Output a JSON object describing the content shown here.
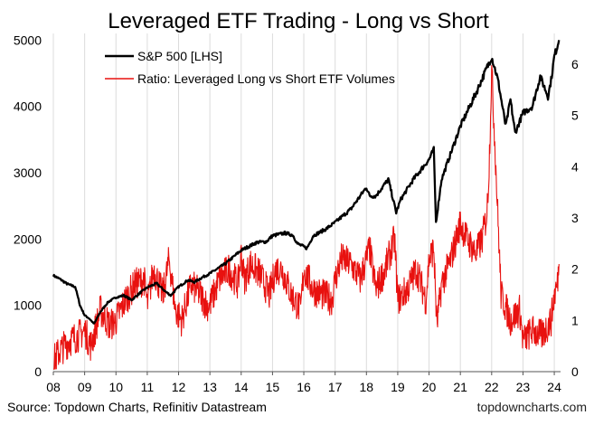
{
  "chart_data": {
    "type": "line",
    "title": "Leveraged ETF Trading - Long vs Short",
    "x_ticks": [
      "08",
      "09",
      "10",
      "11",
      "12",
      "13",
      "14",
      "15",
      "16",
      "17",
      "18",
      "19",
      "20",
      "21",
      "22",
      "23",
      "24"
    ],
    "xlim": [
      2008,
      2024.2
    ],
    "y_left": {
      "label": "",
      "range": [
        0,
        5100
      ],
      "ticks": [
        "0",
        "1000",
        "2000",
        "3000",
        "4000",
        "5000"
      ]
    },
    "y_right": {
      "label": "",
      "range": [
        0,
        6.6
      ],
      "ticks": [
        "0",
        "1",
        "2",
        "3",
        "4",
        "5",
        "6"
      ]
    },
    "grid": "vertical",
    "legend_position": "top-left",
    "colors": {
      "sp500": "#000000",
      "ratio": "#e8110f"
    },
    "series": [
      {
        "name": "S&P 500 [LHS]",
        "axis": "left",
        "x": [
          2008.0,
          2008.2,
          2008.45,
          2008.7,
          2008.85,
          2009.0,
          2009.15,
          2009.3,
          2009.5,
          2009.75,
          2010.0,
          2010.25,
          2010.5,
          2010.75,
          2011.0,
          2011.3,
          2011.6,
          2011.75,
          2012.0,
          2012.3,
          2012.5,
          2012.75,
          2013.0,
          2013.5,
          2014.0,
          2014.5,
          2014.8,
          2015.0,
          2015.4,
          2015.65,
          2015.8,
          2016.1,
          2016.3,
          2016.7,
          2017.0,
          2017.5,
          2018.0,
          2018.1,
          2018.3,
          2018.7,
          2018.95,
          2019.1,
          2019.5,
          2020.0,
          2020.15,
          2020.22,
          2020.4,
          2020.7,
          2021.0,
          2021.5,
          2022.0,
          2022.2,
          2022.45,
          2022.6,
          2022.75,
          2023.0,
          2023.3,
          2023.55,
          2023.8,
          2023.9,
          2024.0,
          2024.15
        ],
        "values": [
          1450,
          1400,
          1320,
          1280,
          1000,
          850,
          800,
          720,
          900,
          1050,
          1120,
          1150,
          1080,
          1180,
          1270,
          1330,
          1200,
          1150,
          1280,
          1380,
          1350,
          1420,
          1480,
          1630,
          1830,
          1950,
          1960,
          2050,
          2090,
          2060,
          1930,
          1860,
          2050,
          2150,
          2250,
          2450,
          2780,
          2650,
          2650,
          2900,
          2400,
          2600,
          2900,
          3200,
          3350,
          2250,
          2900,
          3300,
          3700,
          4200,
          4750,
          4400,
          3700,
          4100,
          3600,
          3900,
          4000,
          4450,
          4150,
          4400,
          4750,
          5000
        ]
      },
      {
        "name": "Ratio: Leveraged Long vs Short ETF Volumes",
        "axis": "right",
        "x": [
          2008.0,
          2008.2,
          2008.5,
          2008.8,
          2009.0,
          2009.2,
          2009.5,
          2009.8,
          2010.0,
          2010.3,
          2010.6,
          2010.9,
          2011.0,
          2011.2,
          2011.5,
          2011.7,
          2011.9,
          2012.1,
          2012.4,
          2012.7,
          2012.9,
          2013.0,
          2013.3,
          2013.6,
          2013.9,
          2014.0,
          2014.1,
          2014.3,
          2014.6,
          2014.9,
          2015.1,
          2015.3,
          2015.6,
          2015.9,
          2016.0,
          2016.3,
          2016.6,
          2016.9,
          2017.0,
          2017.2,
          2017.5,
          2017.8,
          2018.0,
          2018.1,
          2018.3,
          2018.6,
          2018.9,
          2019.0,
          2019.3,
          2019.6,
          2019.9,
          2020.0,
          2020.15,
          2020.25,
          2020.4,
          2020.7,
          2021.0,
          2021.2,
          2021.5,
          2021.7,
          2021.85,
          2021.92,
          2022.0,
          2022.1,
          2022.3,
          2022.6,
          2022.9,
          2023.0,
          2023.3,
          2023.6,
          2023.9,
          2024.0,
          2024.1,
          2024.15
        ],
        "values": [
          0.2,
          0.4,
          0.6,
          0.7,
          0.8,
          0.5,
          1.2,
          0.9,
          1.0,
          1.4,
          1.7,
          1.8,
          1.3,
          2.0,
          1.5,
          2.2,
          1.2,
          1.0,
          1.7,
          1.5,
          1.3,
          1.3,
          1.8,
          2.0,
          1.7,
          2.3,
          1.8,
          2.1,
          1.9,
          1.5,
          2.0,
          2.0,
          1.5,
          1.2,
          2.0,
          1.6,
          1.5,
          1.4,
          1.8,
          2.2,
          2.1,
          1.8,
          2.2,
          2.4,
          1.6,
          2.0,
          2.6,
          1.4,
          1.6,
          2.0,
          1.4,
          2.2,
          2.4,
          0.9,
          1.7,
          2.2,
          2.9,
          2.6,
          2.3,
          2.6,
          3.1,
          4.0,
          5.9,
          4.5,
          1.5,
          1.0,
          1.2,
          0.6,
          0.8,
          0.7,
          1.0,
          1.5,
          1.7,
          2.1
        ]
      }
    ],
    "legend": [
      "S&P 500 [LHS]",
      "Ratio: Leveraged Long vs Short ETF Volumes"
    ]
  },
  "footer": {
    "source": "Source: Topdown Charts, Refinitiv Datastream",
    "brand": "topdowncharts.com"
  }
}
